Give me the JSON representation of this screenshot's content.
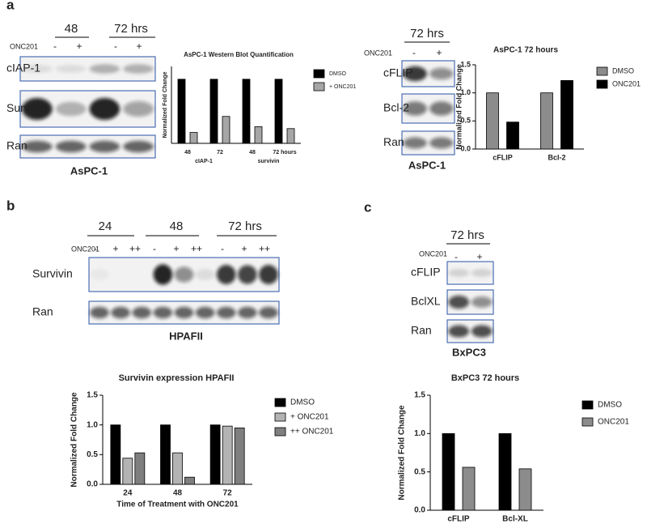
{
  "panel_labels": [
    "a",
    "b",
    "c"
  ],
  "blots": [
    {
      "groups": [
        "48",
        "72 hrs"
      ],
      "treatment": "ONC201",
      "doses": [
        "-",
        "+",
        "-",
        "+"
      ],
      "rows": [
        "cIAP-1",
        "Survivin",
        "Ran"
      ],
      "cell_line": "AsPC-1"
    },
    {
      "groups": [
        "72 hrs"
      ],
      "treatment": "ONC201",
      "doses": [
        "-",
        "+"
      ],
      "rows": [
        "cFLIP",
        "Bcl-2",
        "Ran"
      ],
      "cell_line": "AsPC-1"
    },
    {
      "groups": [
        "24",
        "48",
        "72 hrs"
      ],
      "treatment": "ONC201",
      "doses": [
        "-",
        "+",
        "++",
        "-",
        "+",
        "++",
        "-",
        "+",
        "++"
      ],
      "rows": [
        "Survivin",
        "Ran"
      ],
      "cell_line": "HPAFII"
    },
    {
      "groups": [
        "72 hrs"
      ],
      "treatment": "ONC201",
      "doses": [
        "-",
        "+"
      ],
      "rows": [
        "cFLIP",
        "BclXL",
        "Ran"
      ],
      "cell_line": "BxPC3"
    }
  ],
  "chart_data": [
    {
      "type": "bar",
      "title": "AsPC-1 Western Blot Quantification",
      "ylabel": "Normalized Fold Change",
      "categories": [
        "48",
        "72",
        "48",
        "72 hours"
      ],
      "groups": [
        "cIAP-1",
        "survivin"
      ],
      "series": [
        {
          "name": "DMSO",
          "color": "#000000",
          "values": [
            1,
            1,
            1,
            1
          ]
        },
        {
          "name": "+ ONC201",
          "color": "#a6a6a6",
          "values": [
            0.17,
            0.42,
            0.26,
            0.23
          ]
        }
      ],
      "ylim": [
        0,
        1.2
      ]
    },
    {
      "type": "bar",
      "title": "AsPC-1 72 hours",
      "ylabel": "Normalized Fold Change",
      "categories": [
        "cFLIP",
        "Bcl-2"
      ],
      "series": [
        {
          "name": "DMSO",
          "color": "#8c8c8c",
          "values": [
            1,
            1
          ]
        },
        {
          "name": "ONC201",
          "color": "#000000",
          "values": [
            0.48,
            1.22
          ]
        }
      ],
      "ylim": [
        0,
        1.5
      ],
      "yticks": [
        {
          "value": 0,
          "label": "0.0"
        },
        0.5,
        {
          "value": 1,
          "label": "1.0"
        },
        1.5
      ]
    },
    {
      "type": "bar",
      "title": "Survivin expression HPAFII",
      "ylabel": "Normalized Fold Change",
      "xlabel": "Time of Treatment with ONC201",
      "categories": [
        "24",
        "48",
        "72"
      ],
      "series": [
        {
          "name": "DMSO",
          "color": "#000000",
          "values": [
            1,
            1,
            1
          ]
        },
        {
          "name": "+ ONC201",
          "color": "#b3b3b3",
          "values": [
            0.44,
            0.53,
            0.98
          ]
        },
        {
          "name": "++ ONC201",
          "color": "#7f7f7f",
          "values": [
            0.53,
            0.12,
            0.95
          ]
        }
      ],
      "ylim": [
        0,
        1.5
      ],
      "yticks": [
        {
          "value": 0,
          "label": "0.0"
        },
        0.5,
        {
          "value": 1,
          "label": "1.0"
        },
        1.5
      ]
    },
    {
      "type": "bar",
      "title": "BxPC3 72 hours",
      "ylabel": "Normalized Fold Change",
      "categories": [
        "cFLIP",
        "Bcl-XL"
      ],
      "series": [
        {
          "name": "DMSO",
          "color": "#000000",
          "values": [
            1,
            1
          ]
        },
        {
          "name": "ONC201",
          "color": "#8c8c8c",
          "values": [
            0.56,
            0.54
          ]
        }
      ],
      "ylim": [
        0,
        1.5
      ],
      "yticks": [
        {
          "value": 0,
          "label": "0.0"
        },
        0.5,
        {
          "value": 1,
          "label": "1.0"
        },
        1.5
      ]
    }
  ]
}
